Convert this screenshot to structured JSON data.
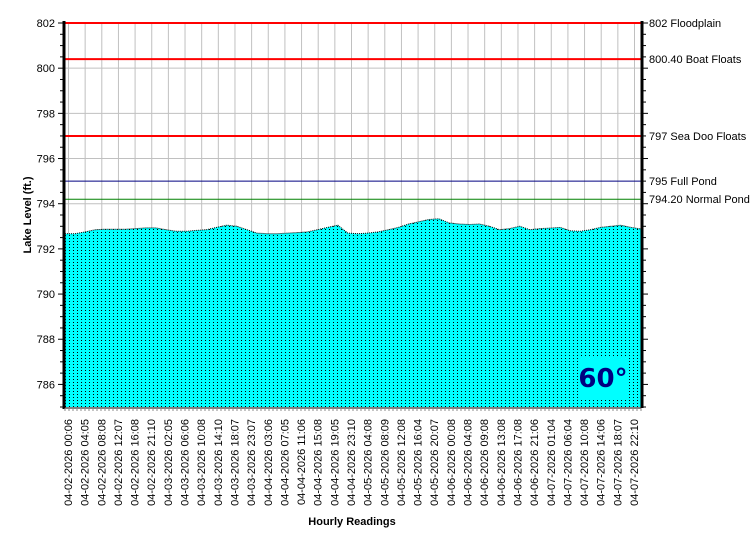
{
  "chart_data": {
    "type": "area",
    "title": "",
    "xlabel": "Hourly Readings",
    "ylabel": "Lake Level (ft.)",
    "ylim": [
      785,
      802
    ],
    "yticks": [
      786,
      788,
      790,
      792,
      794,
      796,
      798,
      800,
      802
    ],
    "grid": true,
    "x_tick_labels": [
      "04-02-2026 00:06",
      "04-02-2026 04:05",
      "04-02-2026 08:08",
      "04-02-2026 12:07",
      "04-02-2026 16:08",
      "04-02-2026 21:10",
      "04-03-2026 02:05",
      "04-03-2026 06:06",
      "04-03-2026 10:08",
      "04-03-2026 14:10",
      "04-03-2026 18:07",
      "04-03-2026 23:07",
      "04-04-2026 03:06",
      "04-04-2026 07:05",
      "04-04-2026 11:06",
      "04-04-2026 15:08",
      "04-04-2026 19:05",
      "04-04-2026 23:10",
      "04-05-2026 04:08",
      "04-05-2026 08:09",
      "04-05-2026 12:08",
      "04-05-2026 16:04",
      "04-05-2026 20:07",
      "04-06-2026 00:08",
      "04-06-2026 04:08",
      "04-06-2026 09:08",
      "04-06-2026 13:08",
      "04-06-2026 17:08",
      "04-06-2026 21:06",
      "04-07-2026 01:04",
      "04-07-2026 06:04",
      "04-07-2026 10:08",
      "04-07-2026 14:06",
      "04-07-2026 18:07",
      "04-07-2026 22:10"
    ],
    "series": [
      {
        "color": "#00FFFF",
        "values": [
          792.67,
          792.67,
          792.75,
          792.85,
          792.87,
          792.87,
          792.87,
          792.9,
          792.93,
          792.93,
          792.85,
          792.78,
          792.78,
          792.82,
          792.85,
          792.95,
          793.05,
          793.0,
          792.85,
          792.7,
          792.67,
          792.67,
          792.7,
          792.72,
          792.75,
          792.85,
          792.95,
          793.05,
          792.7,
          792.67,
          792.7,
          792.75,
          792.85,
          792.95,
          793.1,
          793.2,
          793.3,
          793.33,
          793.15,
          793.1,
          793.08,
          793.1,
          793.0,
          792.85,
          792.9,
          793.0,
          792.85,
          792.9,
          792.92,
          792.95,
          792.8,
          792.78,
          792.85,
          792.95,
          793.0,
          793.05,
          792.95,
          792.88
        ]
      }
    ],
    "reference_lines": [
      {
        "value": 802,
        "label": "802 Floodplain",
        "color": "#FF0000"
      },
      {
        "value": 800.4,
        "label": "800.40 Boat Floats",
        "color": "#FF0000"
      },
      {
        "value": 797,
        "label": "797 Sea Doo Floats",
        "color": "#FF0000"
      },
      {
        "value": 795,
        "label": "795 Full Pond",
        "color": "#000080"
      },
      {
        "value": 794.2,
        "label": "794.20 Normal Pond",
        "color": "#008000"
      }
    ],
    "annotation": {
      "temperature": "60°",
      "color": "#000080",
      "background": "#00FFFF"
    }
  }
}
